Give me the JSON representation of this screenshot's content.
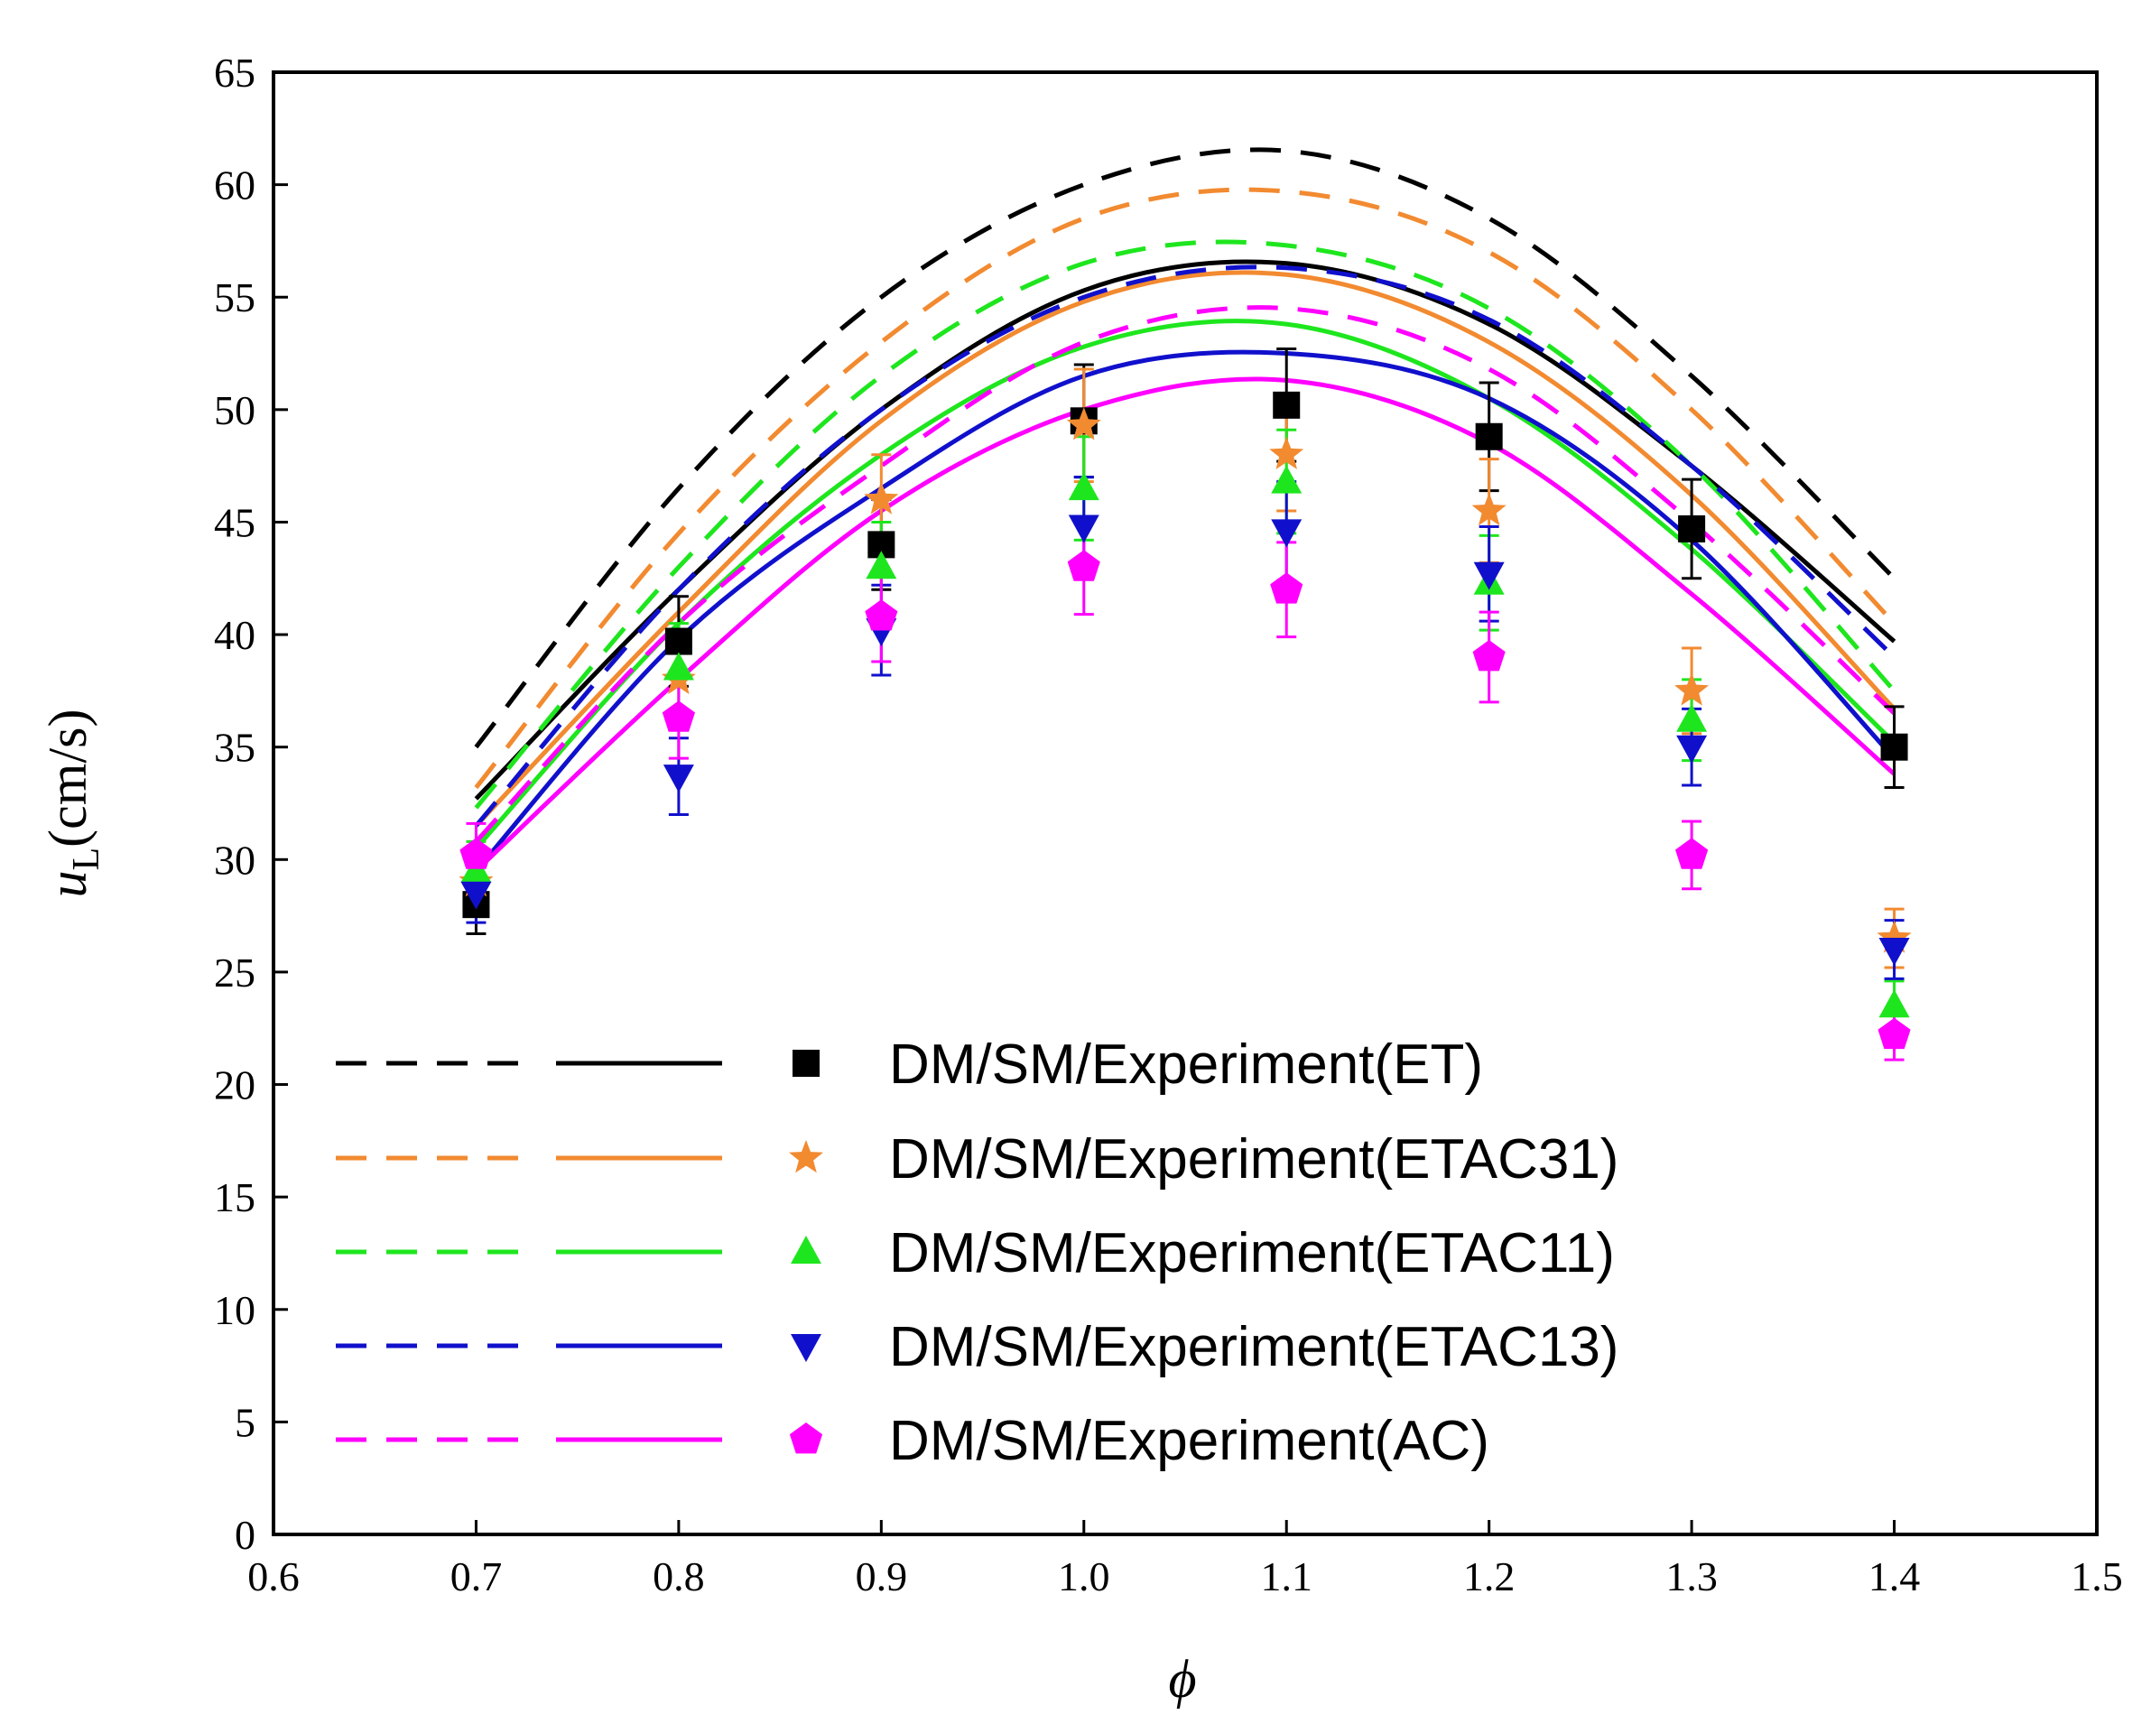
{
  "chart_data": {
    "type": "line+scatter",
    "xlabel": "ϕ",
    "ylabel_main": "u",
    "ylabel_sub": "L",
    "ylabel_unit": "(cm/s)",
    "xlim": [
      0.6,
      1.5
    ],
    "ylim": [
      0,
      65
    ],
    "xticks": [
      0.6,
      0.7,
      0.8,
      0.9,
      1.0,
      1.1,
      1.2,
      1.3,
      1.4,
      1.5
    ],
    "xtick_labels": [
      "0.6",
      "0.7",
      "0.8",
      "0.9",
      "1.0",
      "1.1",
      "1.2",
      "1.3",
      "1.4",
      "1.5"
    ],
    "yticks": [
      0,
      5,
      10,
      15,
      20,
      25,
      30,
      35,
      40,
      45,
      50,
      55,
      60,
      65
    ],
    "ytick_labels": [
      "0",
      "5",
      "10",
      "15",
      "20",
      "25",
      "30",
      "35",
      "40",
      "45",
      "50",
      "55",
      "60",
      "65"
    ],
    "legend_position": "bottom-left",
    "x_experiment": [
      0.7,
      0.8,
      0.9,
      1.0,
      1.1,
      1.2,
      1.3,
      1.4
    ],
    "x_model": [
      0.7,
      0.8,
      0.9,
      1.0,
      1.1,
      1.2,
      1.3,
      1.4
    ],
    "series": [
      {
        "name": "DM/SM/Experiment(ET)",
        "color": "#000000",
        "marker": "square",
        "experiment": [
          28.0,
          39.7,
          44.0,
          49.5,
          50.2,
          48.8,
          44.7,
          35.0
        ],
        "error": [
          1.3,
          2.0,
          2.0,
          2.5,
          2.5,
          2.4,
          2.2,
          1.8
        ],
        "DM": [
          35.0,
          46.5,
          55.0,
          60.0,
          61.5,
          58.5,
          51.5,
          42.5
        ],
        "SM": [
          32.7,
          42.0,
          50.0,
          55.3,
          56.5,
          53.8,
          47.5,
          39.7
        ]
      },
      {
        "name": "DM/SM/Experiment(ETAC31)",
        "color": "#f28a30",
        "marker": "star",
        "experiment": [
          29.0,
          38.0,
          46.0,
          49.3,
          48.0,
          45.5,
          37.5,
          26.5
        ],
        "error": [
          1.3,
          2.0,
          2.0,
          2.5,
          2.5,
          2.3,
          1.9,
          1.3
        ],
        "DM": [
          33.2,
          44.5,
          53.0,
          58.5,
          59.7,
          57.0,
          50.0,
          40.5
        ],
        "SM": [
          31.5,
          41.0,
          49.5,
          54.8,
          56.0,
          53.0,
          46.2,
          36.7
        ]
      },
      {
        "name": "DM/SM/Experiment(ETAC11)",
        "color": "#1ee61e",
        "marker": "triangle-up",
        "experiment": [
          29.5,
          38.5,
          43.0,
          46.5,
          46.8,
          42.3,
          36.2,
          23.5
        ],
        "error": [
          1.3,
          2.0,
          2.0,
          2.3,
          2.3,
          2.1,
          1.8,
          1.1
        ],
        "DM": [
          32.3,
          43.0,
          51.5,
          56.5,
          57.3,
          54.5,
          47.5,
          37.5
        ],
        "SM": [
          30.5,
          40.5,
          48.0,
          52.8,
          53.8,
          50.5,
          43.8,
          35.2
        ]
      },
      {
        "name": "DM/SM/Experiment(ETAC13)",
        "color": "#1010cc",
        "marker": "triangle-down",
        "experiment": [
          28.5,
          33.7,
          40.2,
          44.8,
          44.6,
          42.7,
          35.0,
          26.0
        ],
        "error": [
          1.3,
          1.7,
          2.0,
          2.2,
          2.2,
          2.1,
          1.7,
          1.3
        ],
        "DM": [
          31.5,
          42.0,
          50.0,
          55.0,
          56.3,
          54.0,
          47.5,
          39.0
        ],
        "SM": [
          29.5,
          39.8,
          46.5,
          51.5,
          52.5,
          50.5,
          44.2,
          34.5
        ]
      },
      {
        "name": "DM/SM/Experiment(AC)",
        "color": "#ff00ff",
        "marker": "pentagon",
        "experiment": [
          30.2,
          36.3,
          40.8,
          43.0,
          42.0,
          39.0,
          30.2,
          22.2
        ],
        "error": [
          1.4,
          1.8,
          2.0,
          2.1,
          2.1,
          2.0,
          1.5,
          1.1
        ],
        "DM": [
          30.8,
          40.5,
          47.5,
          53.0,
          54.5,
          51.8,
          45.0,
          36.5
        ],
        "SM": [
          29.5,
          38.0,
          45.5,
          50.0,
          51.3,
          48.5,
          41.8,
          33.8
        ]
      }
    ]
  }
}
